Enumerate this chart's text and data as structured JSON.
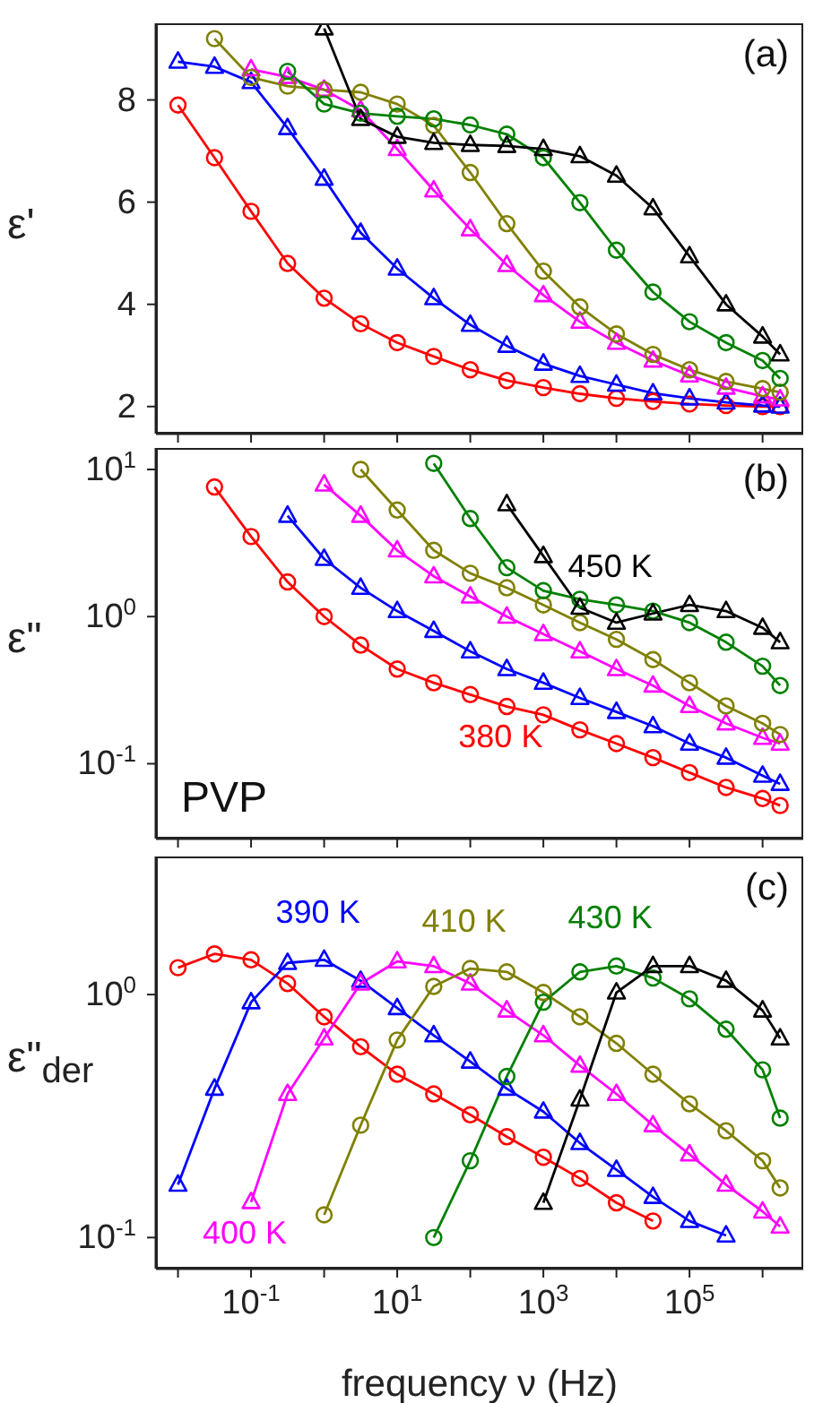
{
  "chart_data": [
    {
      "type": "line",
      "ylabel": "ε'",
      "annotations": [
        "(a)"
      ],
      "log": "x",
      "tick_labels": "y",
      "x": [
        0.01,
        0.0316,
        0.1,
        0.316,
        1,
        3.16,
        10,
        31.6,
        100,
        316,
        1000,
        3162,
        10000,
        31623,
        100000,
        316228,
        1000000,
        1738000
      ],
      "xlim": [
        0.005,
        3600000
      ],
      "xticks": [
        {
          "value": 0.01,
          "label": null
        },
        {
          "value": 0.1,
          "label": null
        },
        {
          "value": 1,
          "label": null
        },
        {
          "value": 10,
          "label": null
        },
        {
          "value": 100,
          "label": null
        },
        {
          "value": 1000,
          "label": null
        },
        {
          "value": 10000,
          "label": null
        },
        {
          "value": 100000,
          "label": null
        },
        {
          "value": 1000000,
          "label": null
        }
      ],
      "ylim": [
        1.47,
        9.5
      ],
      "yticks": [
        2,
        4,
        6,
        8
      ],
      "series": [
        {
          "color": "#ff0000",
          "marker": "circle",
          "values": [
            7.9,
            6.87,
            5.82,
            4.8,
            4.12,
            3.62,
            3.25,
            2.98,
            2.72,
            2.51,
            2.37,
            2.25,
            2.16,
            2.1,
            2.05,
            2.02,
            2.0,
            2.0
          ]
        },
        {
          "color": "#0000ff",
          "marker": "triangle",
          "values": [
            8.75,
            8.65,
            8.35,
            7.45,
            6.46,
            5.4,
            4.7,
            4.12,
            3.6,
            3.19,
            2.84,
            2.6,
            2.43,
            2.26,
            2.16,
            2.08,
            2.02,
            2.0
          ]
        },
        {
          "color": "#ff00ff",
          "marker": "triangle",
          "values": [
            null,
            null,
            8.6,
            8.45,
            8.2,
            7.8,
            7.04,
            6.23,
            5.47,
            4.77,
            4.18,
            3.66,
            3.25,
            2.9,
            2.61,
            2.37,
            2.2,
            2.14
          ]
        },
        {
          "color": "#808000",
          "marker": "circle",
          "values": [
            null,
            9.2,
            8.44,
            8.27,
            8.2,
            8.15,
            7.92,
            7.5,
            6.58,
            5.58,
            4.65,
            3.95,
            3.42,
            3.02,
            2.72,
            2.49,
            2.35,
            2.28
          ]
        },
        {
          "color": "#008000",
          "marker": "circle",
          "values": [
            null,
            null,
            null,
            8.56,
            7.92,
            7.74,
            7.68,
            7.63,
            7.51,
            7.33,
            6.87,
            5.99,
            5.06,
            4.24,
            3.66,
            3.25,
            2.9,
            2.55
          ]
        },
        {
          "color": "#000000",
          "marker": "triangle",
          "values": [
            null,
            null,
            null,
            null,
            9.4,
            7.63,
            7.28,
            7.16,
            7.12,
            7.1,
            7.04,
            6.9,
            6.52,
            5.88,
            4.94,
            4.0,
            3.37,
            3.02
          ]
        }
      ]
    },
    {
      "type": "line",
      "ylabel": "ε\"",
      "annotations": [
        "(b)",
        "PVP"
      ],
      "log": "xy",
      "tick_labels": "y",
      "x": [
        0.0316,
        0.1,
        0.316,
        1,
        3.16,
        10,
        31.6,
        100,
        316,
        1000,
        3162,
        10000,
        31623,
        100000,
        316228,
        1000000,
        1738000
      ],
      "xlim": [
        0.005,
        3600000
      ],
      "xticks": [
        {
          "value": 0.01,
          "label": null
        },
        {
          "value": 0.1,
          "label": null
        },
        {
          "value": 1,
          "label": null
        },
        {
          "value": 10,
          "label": null
        },
        {
          "value": 100,
          "label": null
        },
        {
          "value": 1000,
          "label": null
        },
        {
          "value": 10000,
          "label": null
        },
        {
          "value": 100000,
          "label": null
        },
        {
          "value": 1000000,
          "label": null
        }
      ],
      "ylim": [
        0.031,
        14
      ],
      "yticks": [
        {
          "value": 0.1,
          "label": "10$^{-1}$"
        },
        {
          "value": 1,
          "label": "10$^{0}$"
        },
        {
          "value": 10,
          "label": "10$^{1}$"
        }
      ],
      "series": [
        {
          "name": "380 K",
          "color": "#ff0000",
          "marker": "circle",
          "values": [
            7.6,
            3.5,
            1.72,
            1.0,
            0.64,
            0.44,
            0.355,
            0.295,
            0.245,
            0.215,
            0.17,
            0.137,
            0.11,
            0.087,
            0.069,
            0.058,
            0.052
          ]
        },
        {
          "color": "#0000ff",
          "marker": "triangle",
          "values": [
            null,
            null,
            4.85,
            2.47,
            1.57,
            1.09,
            0.8,
            0.58,
            0.44,
            0.355,
            0.28,
            0.225,
            0.18,
            0.137,
            0.11,
            0.083,
            0.073
          ]
        },
        {
          "color": "#ff00ff",
          "marker": "triangle",
          "values": [
            null,
            null,
            null,
            7.9,
            4.85,
            2.82,
            1.88,
            1.37,
            1.0,
            0.76,
            0.58,
            0.44,
            0.34,
            0.247,
            0.188,
            0.15,
            0.137
          ]
        },
        {
          "color": "#808000",
          "marker": "circle",
          "values": [
            null,
            null,
            null,
            null,
            10,
            5.3,
            2.82,
            1.97,
            1.57,
            1.2,
            0.91,
            0.7,
            0.51,
            0.355,
            0.247,
            0.188,
            0.158
          ]
        },
        {
          "color": "#008000",
          "marker": "circle",
          "values": [
            null,
            null,
            null,
            null,
            null,
            null,
            11,
            4.64,
            2.15,
            1.5,
            1.31,
            1.2,
            1.09,
            0.91,
            0.67,
            0.46,
            0.34
          ]
        },
        {
          "name": "450 K",
          "color": "#000000",
          "marker": "triangle",
          "values": [
            null,
            null,
            null,
            null,
            null,
            null,
            null,
            null,
            5.8,
            2.58,
            1.15,
            0.91,
            1.05,
            1.2,
            1.09,
            0.84,
            0.67
          ]
        }
      ]
    },
    {
      "type": "line",
      "ylabel": "ε\"$_{der}$",
      "xlabel": "frequency ν (Hz)",
      "annotations": [
        "(c)"
      ],
      "log": "xy",
      "x": [
        0.01,
        0.0316,
        0.1,
        0.316,
        1,
        3.16,
        10,
        31.6,
        100,
        316,
        1000,
        3162,
        10000,
        31623,
        100000,
        316228,
        1000000,
        1738000
      ],
      "xlim": [
        0.005,
        3600000
      ],
      "xticks": [
        {
          "value": 0.01,
          "label": null
        },
        {
          "value": 0.1,
          "label": "10$^{-1}$"
        },
        {
          "value": 1,
          "label": null
        },
        {
          "value": 10,
          "label": "10$^{1}$"
        },
        {
          "value": 100,
          "label": null
        },
        {
          "value": 1000,
          "label": "10$^{3}$"
        },
        {
          "value": 10000,
          "label": null
        },
        {
          "value": 100000,
          "label": "10$^{5}$"
        },
        {
          "value": 1000000,
          "label": null
        }
      ],
      "ylim": [
        0.0745,
        3.7
      ],
      "yticks": [
        {
          "value": 0.1,
          "label": "10$^{-1}$"
        },
        {
          "value": 1,
          "label": "10$^{0}$"
        }
      ],
      "series": [
        {
          "color": "#ff0000",
          "marker": "circle",
          "values": [
            1.29,
            1.47,
            1.39,
            1.11,
            0.81,
            0.61,
            0.47,
            0.39,
            0.32,
            0.26,
            0.214,
            0.175,
            0.139,
            0.117,
            null,
            null,
            null,
            null
          ]
        },
        {
          "name": "390 K",
          "color": "#0000ff",
          "marker": "triangle",
          "values": [
            0.165,
            0.41,
            0.93,
            1.35,
            1.39,
            1.14,
            0.88,
            0.68,
            0.53,
            0.41,
            0.33,
            0.245,
            0.19,
            0.147,
            0.117,
            0.102,
            null,
            null
          ]
        },
        {
          "name": "400 K",
          "color": "#ff00ff",
          "marker": "triangle",
          "values": [
            null,
            null,
            0.14,
            0.39,
            0.66,
            1.11,
            1.37,
            1.31,
            1.11,
            0.86,
            0.68,
            0.51,
            0.39,
            0.29,
            0.22,
            0.165,
            0.128,
            0.111
          ]
        },
        {
          "name": "410 K",
          "color": "#808000",
          "marker": "circle",
          "values": [
            null,
            null,
            null,
            null,
            0.124,
            0.29,
            0.65,
            1.08,
            1.28,
            1.24,
            1.02,
            0.81,
            0.63,
            0.47,
            0.355,
            0.275,
            0.207,
            0.16
          ]
        },
        {
          "name": "430 K",
          "color": "#008000",
          "marker": "circle",
          "values": [
            null,
            null,
            null,
            null,
            null,
            null,
            null,
            0.1,
            0.207,
            0.46,
            0.93,
            1.24,
            1.31,
            1.17,
            0.96,
            0.72,
            0.49,
            0.31
          ]
        },
        {
          "color": "#000000",
          "marker": "triangle",
          "values": [
            null,
            null,
            null,
            null,
            null,
            null,
            null,
            null,
            null,
            null,
            0.139,
            0.37,
            1.02,
            1.31,
            1.31,
            1.14,
            0.86,
            0.66
          ]
        }
      ]
    }
  ]
}
